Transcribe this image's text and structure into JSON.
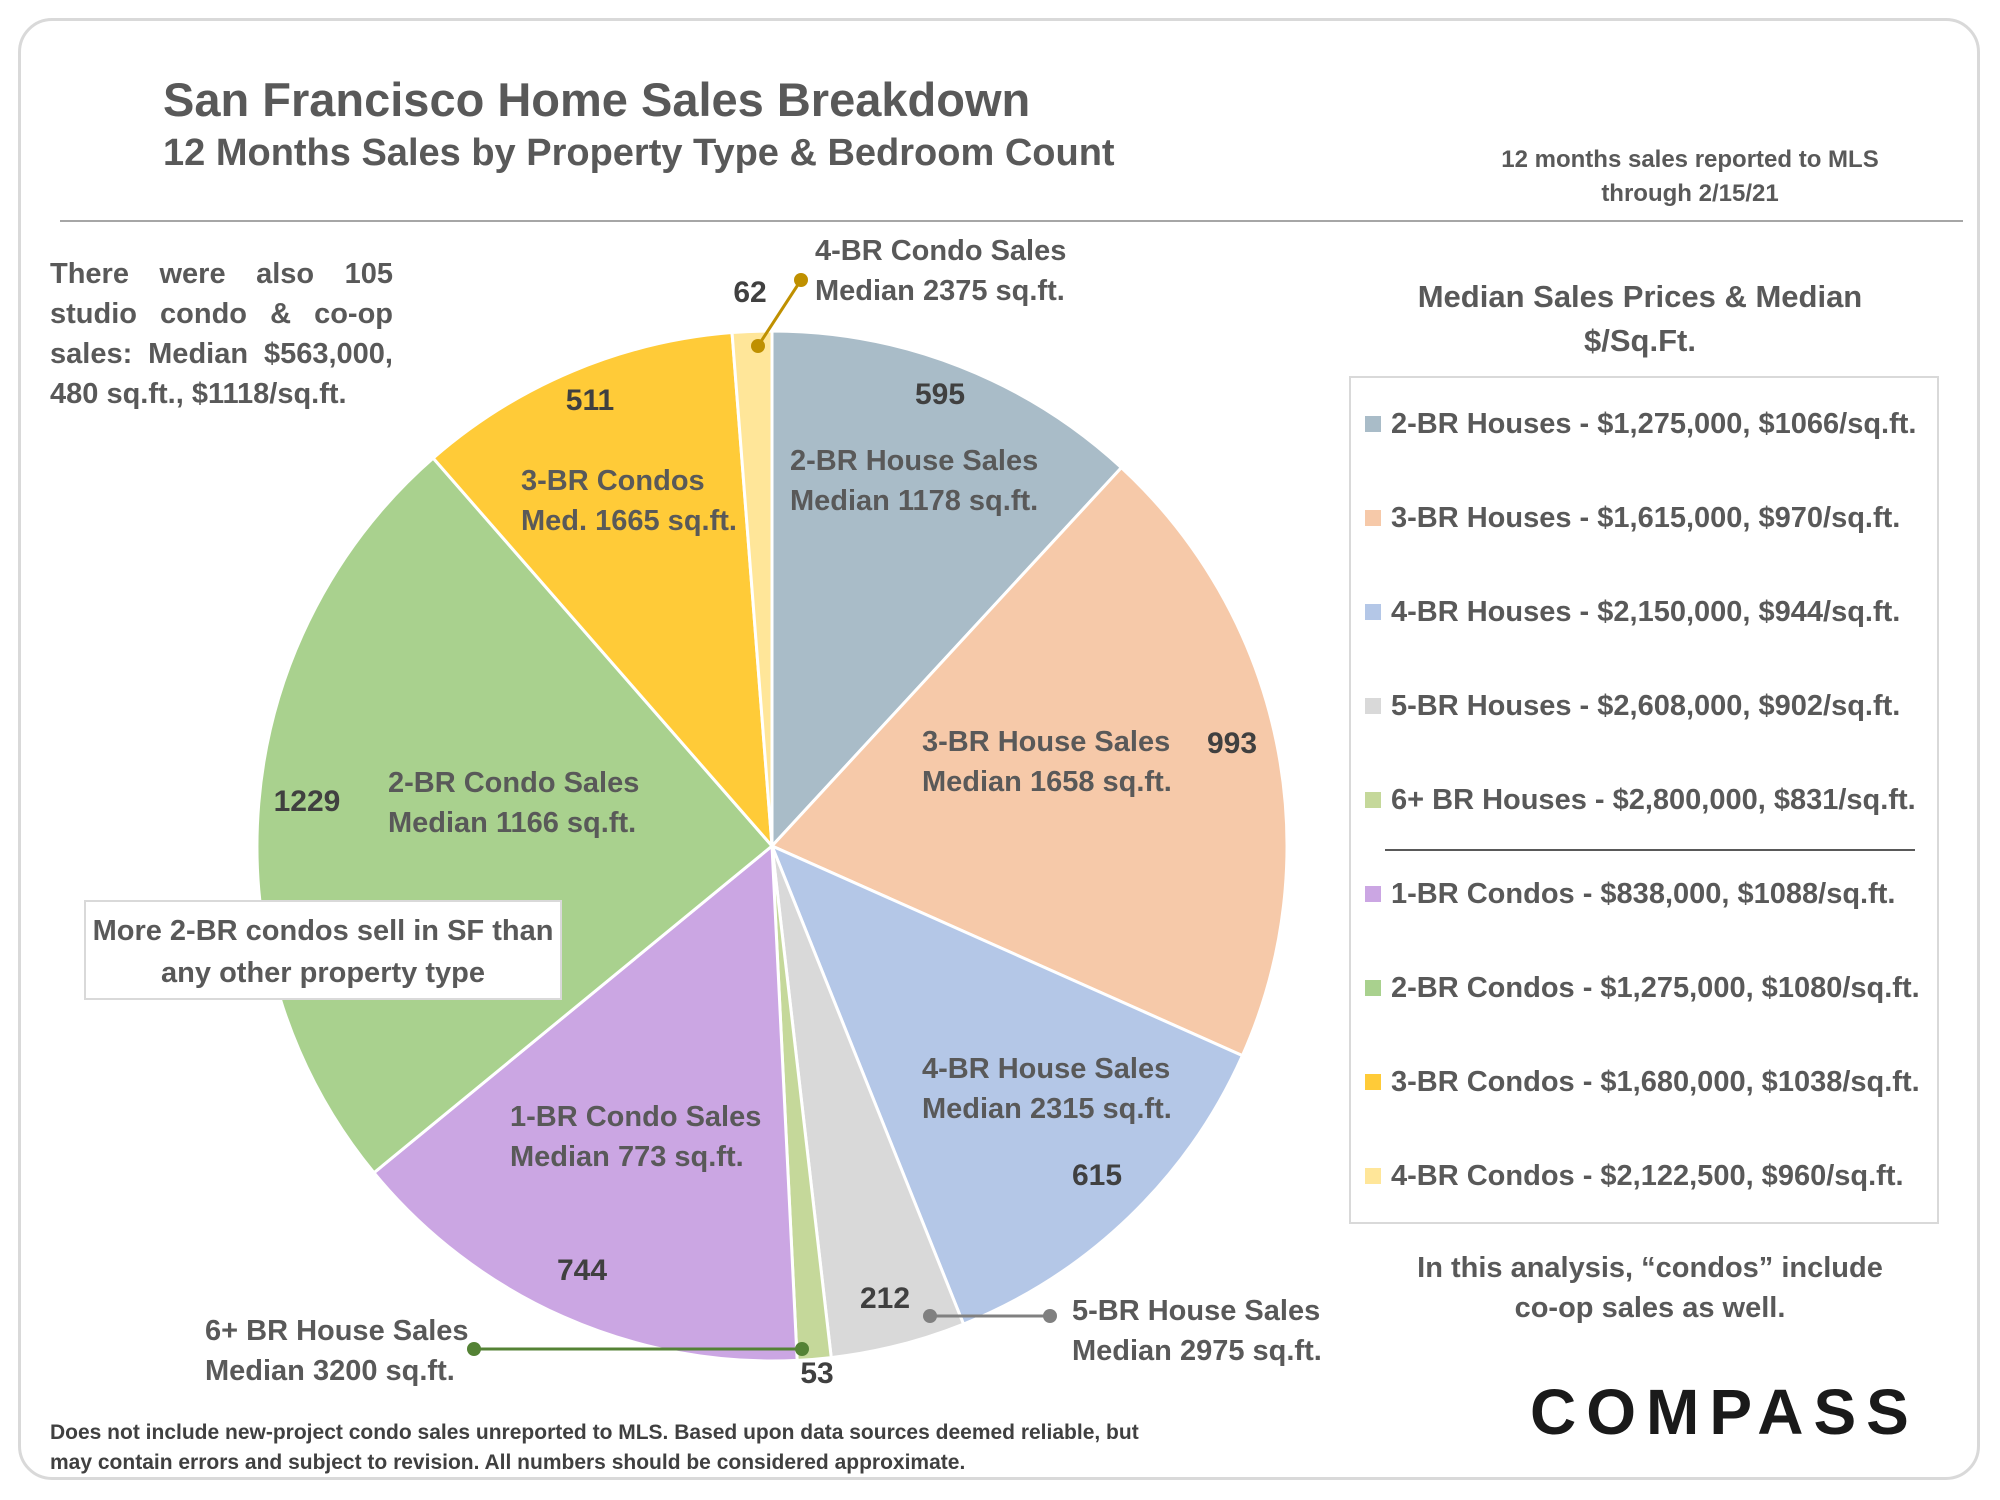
{
  "header": {
    "title": "San Francisco Home Sales Breakdown",
    "subtitle": "12 Months Sales by Property Type & Bedroom Count",
    "report_note": "12 months sales reported to MLS through 2/15/21"
  },
  "notes": {
    "studio": "There were also 105 studio condo & co-op sales: Median $563,000, 480 sq.ft., $1118/sq.ft.",
    "callout": "More 2-BR condos sell in SF than any other property type",
    "condos_definition": "In this analysis, “condos” include co-op sales as well.",
    "disclaimer": "Does not include new-project condo sales unreported to MLS.  Based upon data sources deemed reliable, but may contain errors and subject to revision. All numbers should be considered approximate."
  },
  "legend": {
    "title": "Median Sales Prices & Median $/Sq.Ft.",
    "items": [
      {
        "label": "2-BR Houses - $1,275,000, $1066/sq.ft.",
        "color": "#a9bcc8"
      },
      {
        "label": "3-BR Houses - $1,615,000, $970/sq.ft.",
        "color": "#f6c9a9"
      },
      {
        "label": "4-BR Houses - $2,150,000, $944/sq.ft.",
        "color": "#b4c7e7"
      },
      {
        "label": "5-BR Houses - $2,608,000, $902/sq.ft.",
        "color": "#d9d9d9"
      },
      {
        "label": "6+ BR Houses - $2,800,000, $831/sq.ft.",
        "color": "#c5d89a"
      },
      {
        "label": "1-BR Condos - $838,000, $1088/sq.ft.",
        "color": "#cba6e3"
      },
      {
        "label": "2-BR Condos - $1,275,000, $1080/sq.ft.",
        "color": "#a9d18e"
      },
      {
        "label": "3-BR Condos - $1,680,000, $1038/sq.ft.",
        "color": "#ffcb38"
      },
      {
        "label": "4-BR Condos - $2,122,500, $960/sq.ft.",
        "color": "#ffe699"
      }
    ]
  },
  "logo": "COMPASS",
  "chart_data": {
    "type": "pie",
    "title": "San Francisco Home Sales Breakdown",
    "subtitle": "12 Months Sales by Property Type & Bedroom Count",
    "slices": [
      {
        "category": "2-BR Houses",
        "value": 595,
        "color": "#a9bcc8",
        "label": [
          "2-BR House Sales",
          "Median 1178 sq.ft."
        ]
      },
      {
        "category": "3-BR Houses",
        "value": 993,
        "color": "#f6c9a9",
        "label": [
          "3-BR House Sales",
          "Median 1658 sq.ft."
        ]
      },
      {
        "category": "4-BR Houses",
        "value": 615,
        "color": "#b4c7e7",
        "label": [
          "4-BR House Sales",
          "Median 2315 sq.ft."
        ]
      },
      {
        "category": "5-BR Houses",
        "value": 212,
        "color": "#d9d9d9",
        "label": [
          "5-BR House Sales",
          "Median 2975 sq.ft."
        ]
      },
      {
        "category": "6+ BR Houses",
        "value": 53,
        "color": "#c5d89a",
        "label": [
          "6+ BR House Sales",
          "Median 3200 sq.ft."
        ]
      },
      {
        "category": "1-BR Condos",
        "value": 744,
        "color": "#cba6e3",
        "label": [
          "1-BR Condo Sales",
          "Median 773 sq.ft."
        ]
      },
      {
        "category": "2-BR Condos",
        "value": 1229,
        "color": "#a9d18e",
        "label": [
          "2-BR Condo Sales",
          "Median 1166 sq.ft."
        ]
      },
      {
        "category": "3-BR Condos",
        "value": 511,
        "color": "#ffcb38",
        "label": [
          "3-BR Condos",
          "Med. 1665 sq.ft."
        ]
      },
      {
        "category": "4-BR Condos",
        "value": 62,
        "color": "#ffe699",
        "label": [
          "4-BR Condo Sales",
          "Median 2375 sq.ft."
        ]
      }
    ],
    "leader_colors": {
      "5-BR Houses": "#808080",
      "6+ BR Houses": "#548235",
      "4-BR Condos": "#bf9000"
    }
  }
}
